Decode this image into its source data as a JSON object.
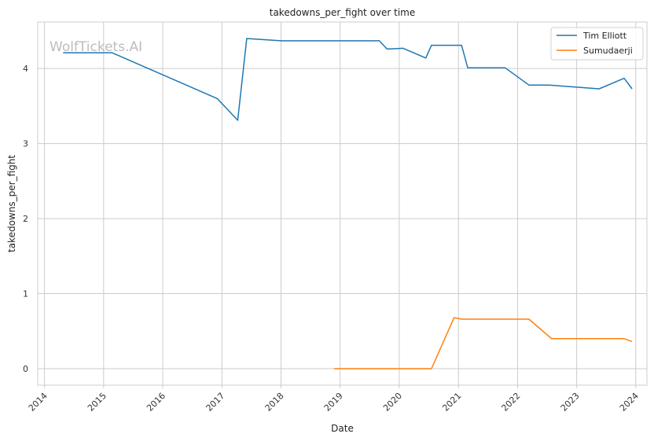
{
  "chart_data": {
    "type": "line",
    "title": "takedowns_per_fight over time",
    "xlabel": "Date",
    "ylabel": "takedowns_per_fight",
    "watermark": "WolfTickets.AI",
    "x_ticks": [
      "2014",
      "2015",
      "2016",
      "2017",
      "2018",
      "2019",
      "2020",
      "2021",
      "2022",
      "2023",
      "2024"
    ],
    "y_ticks": [
      "0",
      "1",
      "2",
      "3",
      "4"
    ],
    "xlim": [
      "2013-11-20",
      "2024-03-10"
    ],
    "ylim": [
      -0.22,
      4.62
    ],
    "grid": true,
    "legend_position": "top-right",
    "series": [
      {
        "name": "Tim Elliott",
        "color": "#1f77b4",
        "points": [
          [
            "2014-04-26",
            4.21
          ],
          [
            "2015-02-22",
            4.21
          ],
          [
            "2016-12-03",
            3.6
          ],
          [
            "2017-04-08",
            3.31
          ],
          [
            "2017-06-03",
            4.4
          ],
          [
            "2018-01-01",
            4.37
          ],
          [
            "2019-08-31",
            4.37
          ],
          [
            "2019-10-18",
            4.26
          ],
          [
            "2020-01-25",
            4.27
          ],
          [
            "2020-06-13",
            4.14
          ],
          [
            "2020-07-18",
            4.31
          ],
          [
            "2021-01-20",
            4.31
          ],
          [
            "2021-02-27",
            4.01
          ],
          [
            "2021-10-16",
            4.01
          ],
          [
            "2022-03-12",
            3.78
          ],
          [
            "2022-07-16",
            3.78
          ],
          [
            "2023-05-20",
            3.73
          ],
          [
            "2023-10-21",
            3.87
          ],
          [
            "2023-12-09",
            3.73
          ]
        ]
      },
      {
        "name": "Sumudaerji",
        "color": "#ff7f0e",
        "points": [
          [
            "2018-11-24",
            0.0
          ],
          [
            "2020-07-18",
            0.0
          ],
          [
            "2020-12-05",
            0.68
          ],
          [
            "2021-01-20",
            0.66
          ],
          [
            "2022-03-12",
            0.66
          ],
          [
            "2022-07-30",
            0.4
          ],
          [
            "2023-10-21",
            0.4
          ],
          [
            "2023-12-09",
            0.36
          ]
        ]
      }
    ]
  }
}
